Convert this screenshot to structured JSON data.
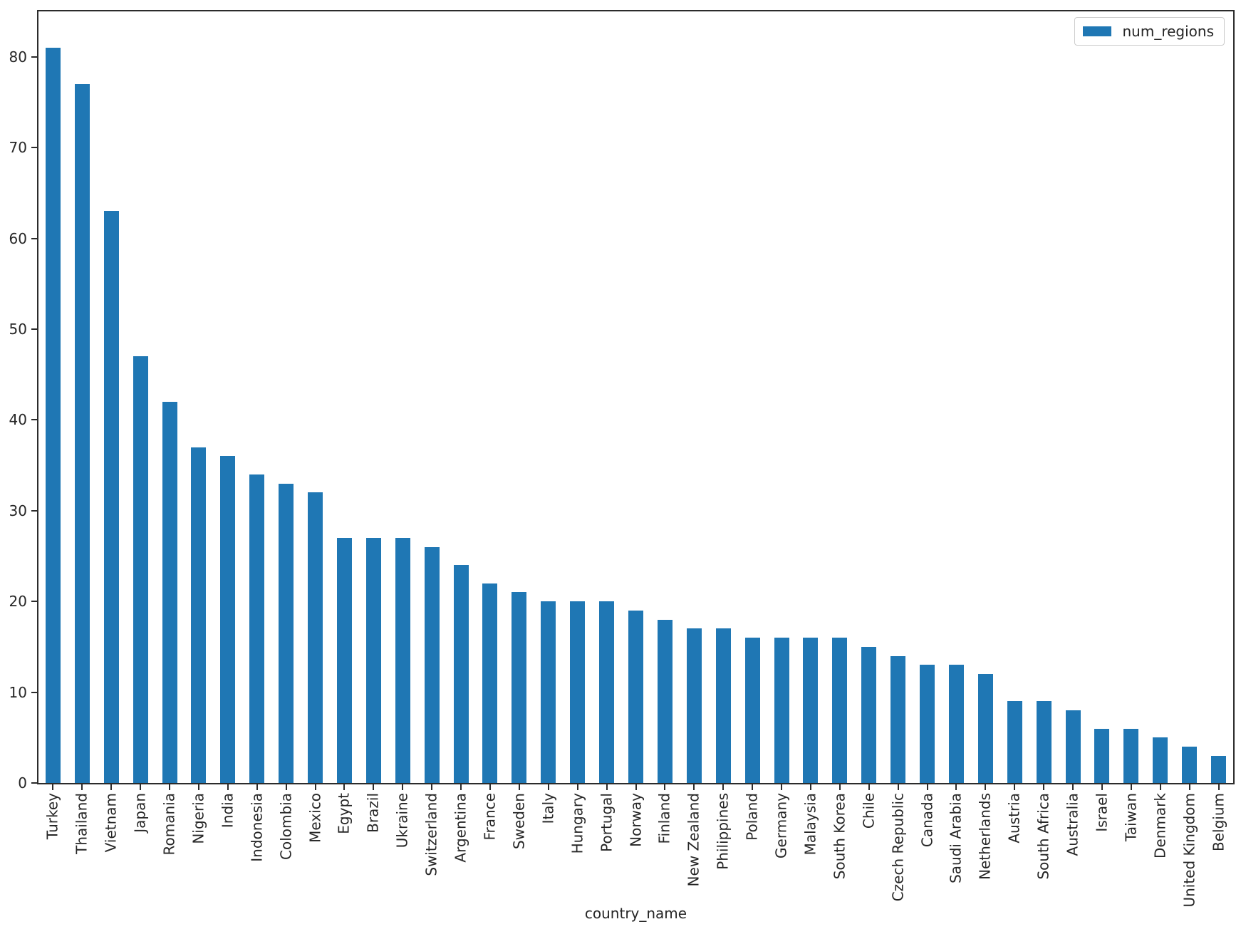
{
  "chart_data": {
    "type": "bar",
    "title": "",
    "xlabel": "country_name",
    "ylabel": "",
    "categories": [
      "Turkey",
      "Thailand",
      "Vietnam",
      "Japan",
      "Romania",
      "Nigeria",
      "India",
      "Indonesia",
      "Colombia",
      "Mexico",
      "Egypt",
      "Brazil",
      "Ukraine",
      "Switzerland",
      "Argentina",
      "France",
      "Sweden",
      "Italy",
      "Hungary",
      "Portugal",
      "Norway",
      "Finland",
      "New Zealand",
      "Philippines",
      "Poland",
      "Germany",
      "Malaysia",
      "South Korea",
      "Chile",
      "Czech Republic",
      "Canada",
      "Saudi Arabia",
      "Netherlands",
      "Austria",
      "South Africa",
      "Australia",
      "Israel",
      "Taiwan",
      "Denmark",
      "United Kingdom",
      "Belgium"
    ],
    "series": [
      {
        "name": "num_regions",
        "values": [
          81,
          77,
          63,
          47,
          42,
          37,
          36,
          34,
          33,
          32,
          27,
          27,
          27,
          26,
          24,
          22,
          21,
          20,
          20,
          20,
          19,
          18,
          17,
          17,
          16,
          16,
          16,
          16,
          15,
          14,
          13,
          13,
          12,
          9,
          9,
          8,
          6,
          6,
          5,
          4,
          3
        ]
      }
    ],
    "ylim": [
      0,
      85
    ],
    "yticks": [
      0,
      10,
      20,
      30,
      40,
      50,
      60,
      70,
      80
    ],
    "grid": false,
    "legend_position": "upper-right",
    "x_tick_rotation_deg": 90,
    "colors": {
      "bar": "#1f77b4",
      "spine": "#2b2b2b",
      "text": "#262626",
      "legend_border": "#cccccc",
      "background": "#ffffff"
    }
  }
}
